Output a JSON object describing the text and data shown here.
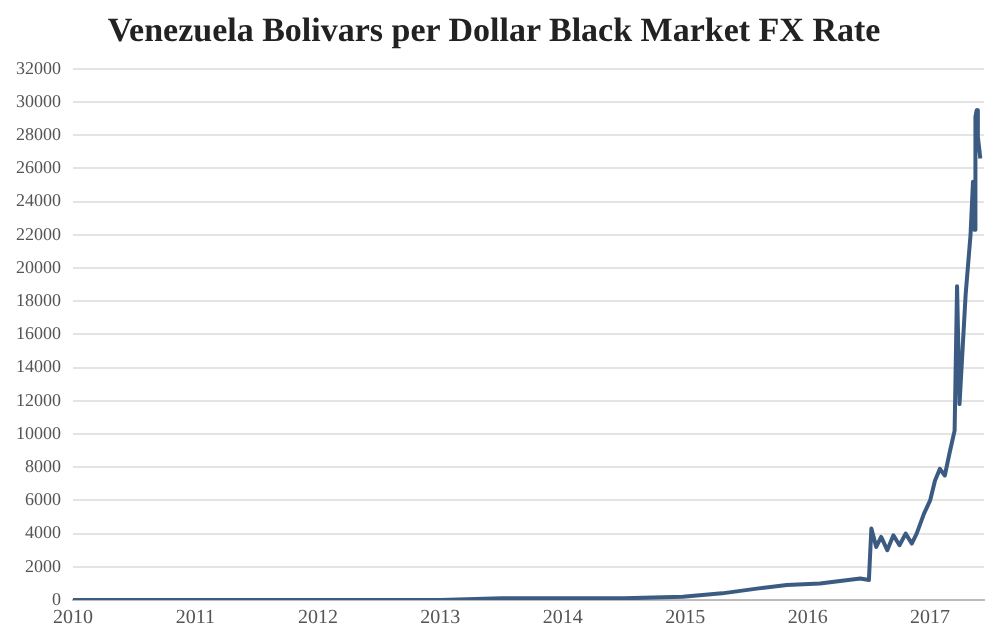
{
  "chart_data": {
    "type": "line",
    "title": "Venezuela Bolivars per Dollar Black Market FX Rate",
    "x": [
      2010,
      2011,
      2012,
      2013,
      2013.5,
      2014,
      2014.5,
      2014.98,
      2015.3,
      2015.6,
      2015.83,
      2016.1,
      2016.43,
      2016.5,
      2016.52,
      2016.56,
      2016.6,
      2016.65,
      2016.7,
      2016.75,
      2016.8,
      2016.85,
      2016.89,
      2016.95,
      2017,
      2017.04,
      2017.08,
      2017.12,
      2017.16,
      2017.2,
      2017.22,
      2017.24,
      2017.29,
      2017.33,
      2017.35,
      2017.36,
      2017.37,
      2017.38,
      2017.39,
      2017.41
    ],
    "series": [
      {
        "color": "#3b5b82",
        "values": [
          0,
          0,
          0,
          0,
          100,
          100,
          100,
          200,
          400,
          700,
          900,
          1000,
          1300,
          1200,
          4300,
          3200,
          3800,
          3000,
          3900,
          3300,
          4000,
          3400,
          4000,
          5200,
          6000,
          7200,
          7900,
          7500,
          8900,
          10200,
          18900,
          11800,
          18400,
          22000,
          25200,
          22300,
          29100,
          29500,
          27900,
          26600
        ]
      }
    ],
    "xlim": [
      2010,
      2017.44
    ],
    "xticks": [
      2010,
      2011,
      2012,
      2013,
      2014,
      2015,
      2016,
      2017
    ],
    "ylim": [
      0,
      32000
    ],
    "yticks": [
      0,
      2000,
      4000,
      6000,
      8000,
      10000,
      12000,
      14000,
      16000,
      18000,
      20000,
      22000,
      24000,
      26000,
      28000,
      30000,
      32000
    ],
    "grid": "y",
    "legend": false,
    "marker": "none",
    "line_style": "solid"
  }
}
